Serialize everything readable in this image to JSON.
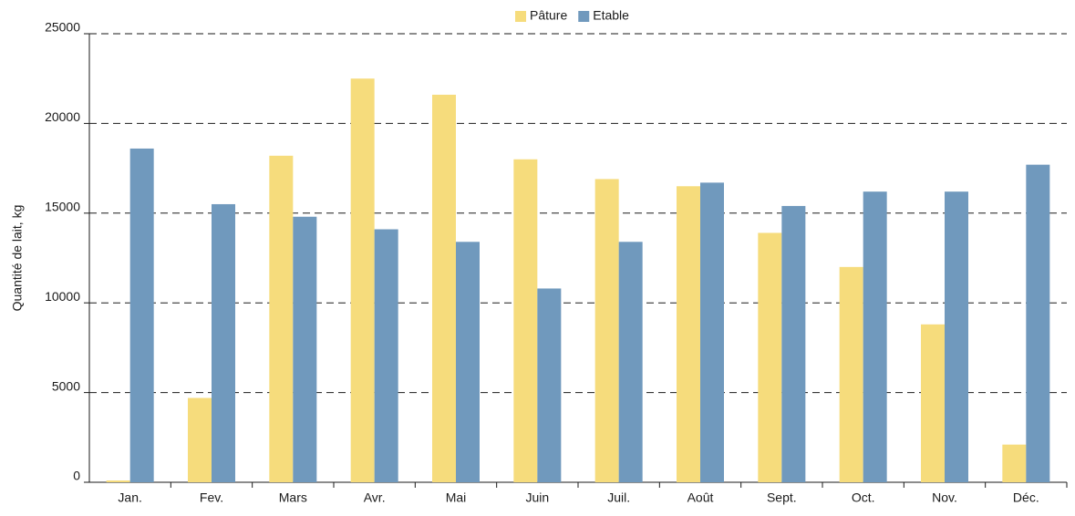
{
  "chart_data": {
    "type": "bar",
    "y_label": "Quantité de lait, kg",
    "categories": [
      "Jan.",
      "Fev.",
      "Mars",
      "Avr.",
      "Mai",
      "Juin",
      "Juil.",
      "Août",
      "Sept.",
      "Oct.",
      "Nov.",
      "Déc."
    ],
    "series": [
      {
        "name": "Pâture",
        "color": "#f6dc7c",
        "values": [
          100,
          4700,
          18200,
          22500,
          21600,
          18000,
          16900,
          16500,
          13900,
          12000,
          8800,
          2100
        ]
      },
      {
        "name": "Etable",
        "color": "#7099bd",
        "values": [
          18600,
          15500,
          14800,
          14100,
          13400,
          10800,
          13400,
          16700,
          15400,
          16200,
          16200,
          17700
        ]
      }
    ],
    "ylim": [
      0,
      25000
    ],
    "yticks": [
      0,
      5000,
      10000,
      15000,
      20000,
      25000
    ],
    "grid": true,
    "legend": "top"
  }
}
